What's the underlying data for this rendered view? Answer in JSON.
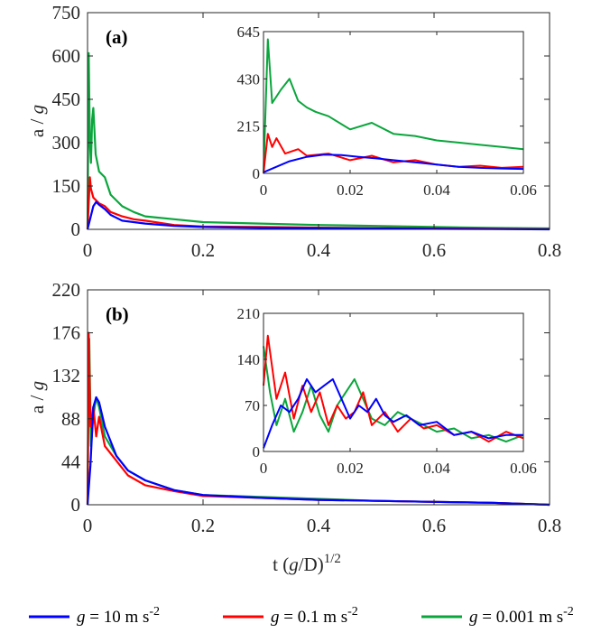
{
  "colors": {
    "blue": "#0000ff",
    "red": "#ff0000",
    "green": "#0aa63c",
    "axis": "#262626"
  },
  "legend": [
    {
      "color": "#0000ff",
      "g": "g",
      "rest": " = 10 m s",
      "sup": "-2"
    },
    {
      "color": "#ff0000",
      "g": "g",
      "rest": " = 0.1 m s",
      "sup": "-2"
    },
    {
      "color": "#0aa63c",
      "g": "g",
      "rest": " = 0.001 m s",
      "sup": "-2"
    }
  ],
  "xlabel": {
    "pre": "t (",
    "g": "g",
    "post": "/D)",
    "sup": "1/2"
  },
  "chart_data": [
    {
      "id": "a",
      "type": "line",
      "panel_label": "(a)",
      "ylabel": {
        "pre": "a / ",
        "g": "g"
      },
      "xlim": [
        0,
        0.8
      ],
      "ylim": [
        0,
        750
      ],
      "xticks": [
        0,
        0.2,
        0.4,
        0.6,
        0.8
      ],
      "xtick_labels": [
        "0",
        "0.2",
        "0.4",
        "0.6",
        "0.8"
      ],
      "yticks": [
        0,
        150,
        300,
        450,
        600,
        750
      ],
      "ytick_labels": [
        "0",
        "150",
        "300",
        "450",
        "600",
        "750"
      ],
      "series": [
        {
          "name": "g = 0.001 m s-2",
          "color": "#0aa63c",
          "x": [
            0,
            0.002,
            0.004,
            0.006,
            0.008,
            0.01,
            0.014,
            0.02,
            0.03,
            0.04,
            0.06,
            0.08,
            0.1,
            0.15,
            0.2,
            0.3,
            0.4,
            0.5,
            0.6,
            0.7,
            0.8
          ],
          "y": [
            0,
            610,
            300,
            230,
            380,
            420,
            260,
            200,
            180,
            120,
            80,
            60,
            45,
            35,
            25,
            20,
            15,
            12,
            8,
            5,
            3
          ]
        },
        {
          "name": "g = 0.1 m s-2",
          "color": "#ff0000",
          "x": [
            0,
            0.002,
            0.004,
            0.006,
            0.01,
            0.015,
            0.02,
            0.03,
            0.04,
            0.06,
            0.08,
            0.1,
            0.15,
            0.2,
            0.3,
            0.4,
            0.6,
            0.8
          ],
          "y": [
            0,
            90,
            180,
            140,
            110,
            100,
            90,
            80,
            60,
            45,
            35,
            30,
            15,
            10,
            8,
            6,
            3,
            1
          ]
        },
        {
          "name": "g = 10 m s-2",
          "color": "#0000ff",
          "x": [
            0,
            0.005,
            0.01,
            0.015,
            0.02,
            0.03,
            0.04,
            0.05,
            0.06,
            0.08,
            0.1,
            0.15,
            0.2,
            0.3,
            0.4,
            0.5,
            0.6,
            0.7,
            0.8
          ],
          "y": [
            0,
            40,
            80,
            95,
            85,
            70,
            50,
            40,
            30,
            25,
            20,
            12,
            8,
            5,
            4,
            3,
            2,
            1,
            0
          ]
        }
      ],
      "inset": {
        "xlim": [
          0,
          0.06
        ],
        "ylim": [
          0,
          645
        ],
        "xticks": [
          0,
          0.02,
          0.04,
          0.06
        ],
        "xtick_labels": [
          "0",
          "0.02",
          "0.04",
          "0.06"
        ],
        "yticks": [
          0,
          215,
          430,
          645
        ],
        "ytick_labels": [
          "0",
          "215",
          "430",
          "645"
        ],
        "series": [
          {
            "name": "g = 0.001 m s-2",
            "color": "#0aa63c",
            "x": [
              0,
              0.001,
              0.002,
              0.004,
              0.006,
              0.008,
              0.01,
              0.012,
              0.015,
              0.02,
              0.025,
              0.03,
              0.035,
              0.04,
              0.045,
              0.05,
              0.055,
              0.06
            ],
            "y": [
              0,
              610,
              320,
              380,
              430,
              330,
              300,
              280,
              260,
              200,
              230,
              180,
              170,
              150,
              140,
              130,
              120,
              110
            ]
          },
          {
            "name": "g = 0.1 m s-2",
            "color": "#ff0000",
            "x": [
              0,
              0.001,
              0.002,
              0.003,
              0.005,
              0.008,
              0.01,
              0.015,
              0.02,
              0.025,
              0.03,
              0.035,
              0.04,
              0.045,
              0.05,
              0.055,
              0.06
            ],
            "y": [
              0,
              180,
              120,
              160,
              90,
              110,
              80,
              90,
              60,
              80,
              50,
              60,
              40,
              30,
              35,
              25,
              30
            ]
          },
          {
            "name": "g = 10 m s-2",
            "color": "#0000ff",
            "x": [
              0,
              0.003,
              0.006,
              0.01,
              0.014,
              0.018,
              0.022,
              0.026,
              0.03,
              0.035,
              0.04,
              0.045,
              0.05,
              0.055,
              0.06
            ],
            "y": [
              5,
              30,
              55,
              75,
              85,
              83,
              75,
              68,
              60,
              50,
              40,
              30,
              25,
              22,
              20
            ]
          }
        ]
      }
    },
    {
      "id": "b",
      "type": "line",
      "panel_label": "(b)",
      "ylabel": {
        "pre": "a / ",
        "g": "g"
      },
      "xlim": [
        0,
        0.8
      ],
      "ylim": [
        0,
        220
      ],
      "xticks": [
        0,
        0.2,
        0.4,
        0.6,
        0.8
      ],
      "xtick_labels": [
        "0",
        "0.2",
        "0.4",
        "0.6",
        "0.8"
      ],
      "yticks": [
        0,
        44,
        88,
        132,
        176,
        220
      ],
      "ytick_labels": [
        "0",
        "44",
        "88",
        "132",
        "176",
        "220"
      ],
      "series": [
        {
          "name": "g = 0.001 m s-2",
          "color": "#0aa63c",
          "x": [
            0,
            0.003,
            0.006,
            0.01,
            0.015,
            0.02,
            0.03,
            0.05,
            0.07,
            0.1,
            0.15,
            0.2,
            0.3,
            0.4,
            0.5,
            0.6,
            0.7,
            0.8
          ],
          "y": [
            0,
            170,
            60,
            90,
            110,
            100,
            70,
            50,
            35,
            25,
            15,
            10,
            8,
            6,
            4,
            3,
            2,
            0
          ]
        },
        {
          "name": "g = 0.1 m s-2",
          "color": "#ff0000",
          "x": [
            0,
            0.002,
            0.005,
            0.01,
            0.015,
            0.02,
            0.03,
            0.05,
            0.07,
            0.1,
            0.15,
            0.2,
            0.3,
            0.4,
            0.5,
            0.6,
            0.7,
            0.8
          ],
          "y": [
            0,
            176,
            80,
            100,
            70,
            90,
            60,
            45,
            30,
            20,
            14,
            9,
            7,
            5,
            4,
            3,
            2,
            0
          ]
        },
        {
          "name": "g = 10 m s-2",
          "color": "#0000ff",
          "x": [
            0,
            0.005,
            0.01,
            0.015,
            0.02,
            0.03,
            0.05,
            0.07,
            0.1,
            0.15,
            0.2,
            0.3,
            0.4,
            0.5,
            0.6,
            0.7,
            0.8
          ],
          "y": [
            0,
            40,
            100,
            110,
            105,
            80,
            50,
            35,
            25,
            15,
            10,
            7,
            5,
            4,
            3,
            2,
            0
          ]
        }
      ],
      "inset": {
        "xlim": [
          0,
          0.06
        ],
        "ylim": [
          0,
          210
        ],
        "xticks": [
          0,
          0.02,
          0.04,
          0.06
        ],
        "xtick_labels": [
          "0",
          "0.02",
          "0.04",
          "0.06"
        ],
        "yticks": [
          0,
          70,
          140,
          210
        ],
        "ytick_labels": [
          "0",
          "70",
          "140",
          "210"
        ],
        "series": [
          {
            "name": "g = 0.001 m s-2",
            "color": "#0aa63c",
            "x": [
              0,
              0.0015,
              0.003,
              0.005,
              0.007,
              0.009,
              0.011,
              0.013,
              0.015,
              0.017,
              0.019,
              0.021,
              0.023,
              0.025,
              0.028,
              0.031,
              0.034,
              0.037,
              0.04,
              0.044,
              0.048,
              0.052,
              0.056,
              0.06
            ],
            "y": [
              160,
              90,
              40,
              80,
              30,
              60,
              100,
              55,
              30,
              70,
              90,
              110,
              80,
              50,
              40,
              60,
              50,
              40,
              30,
              35,
              20,
              25,
              15,
              25
            ]
          },
          {
            "name": "g = 0.1 m s-2",
            "color": "#ff0000",
            "x": [
              0,
              0.001,
              0.003,
              0.005,
              0.007,
              0.009,
              0.011,
              0.013,
              0.015,
              0.017,
              0.019,
              0.021,
              0.023,
              0.025,
              0.028,
              0.031,
              0.034,
              0.037,
              0.04,
              0.044,
              0.048,
              0.052,
              0.056,
              0.06
            ],
            "y": [
              100,
              176,
              80,
              120,
              50,
              100,
              60,
              90,
              40,
              70,
              50,
              60,
              90,
              40,
              60,
              30,
              50,
              35,
              40,
              25,
              30,
              15,
              30,
              20
            ]
          },
          {
            "name": "g = 10 m s-2",
            "color": "#0000ff",
            "x": [
              0,
              0.002,
              0.004,
              0.006,
              0.008,
              0.01,
              0.012,
              0.014,
              0.016,
              0.018,
              0.02,
              0.022,
              0.024,
              0.026,
              0.028,
              0.03,
              0.033,
              0.036,
              0.04,
              0.044,
              0.048,
              0.052,
              0.056,
              0.06
            ],
            "y": [
              5,
              40,
              70,
              60,
              80,
              110,
              90,
              100,
              110,
              80,
              50,
              70,
              60,
              80,
              55,
              45,
              55,
              40,
              45,
              25,
              30,
              20,
              25,
              25
            ]
          }
        ]
      }
    }
  ]
}
